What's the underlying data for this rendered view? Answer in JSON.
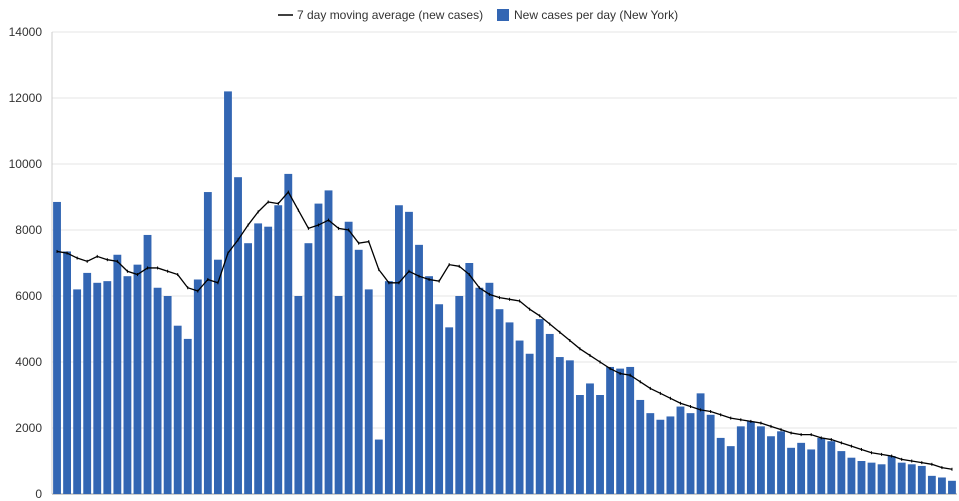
{
  "chart_data": {
    "type": "bar",
    "title": "",
    "xlabel": "",
    "ylabel": "",
    "ylim": [
      0,
      14000
    ],
    "y_ticks": [
      0,
      2000,
      4000,
      6000,
      8000,
      10000,
      12000,
      14000
    ],
    "grid": true,
    "legend_position": "top-center",
    "colors": {
      "bar": "#3366b3",
      "line": "#000000",
      "grid": "#e6e6e6"
    },
    "legend": [
      {
        "label": "7 day moving average (new cases)",
        "kind": "line"
      },
      {
        "label": "New cases per day (New York)",
        "kind": "bar"
      }
    ],
    "series": [
      {
        "name": "New cases per day (New York)",
        "type": "bar",
        "values": [
          8850,
          7350,
          6200,
          6700,
          6400,
          6450,
          7250,
          6600,
          6950,
          7850,
          6250,
          6000,
          5100,
          4700,
          6500,
          9150,
          7100,
          12200,
          9600,
          7600,
          8200,
          8100,
          8750,
          9700,
          6000,
          7600,
          8800,
          9200,
          6000,
          8250,
          7400,
          6200,
          1650,
          6450,
          8750,
          8550,
          7550,
          6600,
          5750,
          5050,
          6000,
          7000,
          6250,
          6400,
          5600,
          5200,
          4650,
          4250,
          5300,
          4850,
          4150,
          4050,
          3000,
          3350,
          3000,
          3850,
          3800,
          3850,
          2850,
          2450,
          2250,
          2350,
          2650,
          2450,
          3050,
          2400,
          1700,
          1450,
          2050,
          2200,
          2050,
          1750,
          1900,
          1400,
          1550,
          1350,
          1700,
          1600,
          1300,
          1100,
          1000,
          950,
          900,
          1150,
          950,
          900,
          850,
          550,
          500,
          400
        ]
      },
      {
        "name": "7 day moving average (new cases)",
        "type": "line",
        "values": [
          7350,
          7300,
          7150,
          7050,
          7200,
          7100,
          7050,
          6750,
          6650,
          6850,
          6850,
          6750,
          6650,
          6250,
          6150,
          6500,
          6400,
          7300,
          7700,
          8150,
          8550,
          8850,
          8800,
          9150,
          8600,
          8050,
          8150,
          8300,
          8050,
          8000,
          7600,
          7650,
          6800,
          6400,
          6400,
          6750,
          6600,
          6500,
          6450,
          6950,
          6900,
          6650,
          6250,
          6050,
          5950,
          5900,
          5850,
          5600,
          5400,
          5150,
          4900,
          4650,
          4400,
          4200,
          4000,
          3800,
          3650,
          3600,
          3400,
          3200,
          3050,
          2900,
          2750,
          2650,
          2550,
          2500,
          2400,
          2300,
          2250,
          2200,
          2150,
          2050,
          1950,
          1850,
          1800,
          1800,
          1700,
          1650,
          1550,
          1450,
          1350,
          1250,
          1200,
          1150,
          1050,
          1000,
          950,
          900,
          800,
          750
        ]
      }
    ]
  }
}
